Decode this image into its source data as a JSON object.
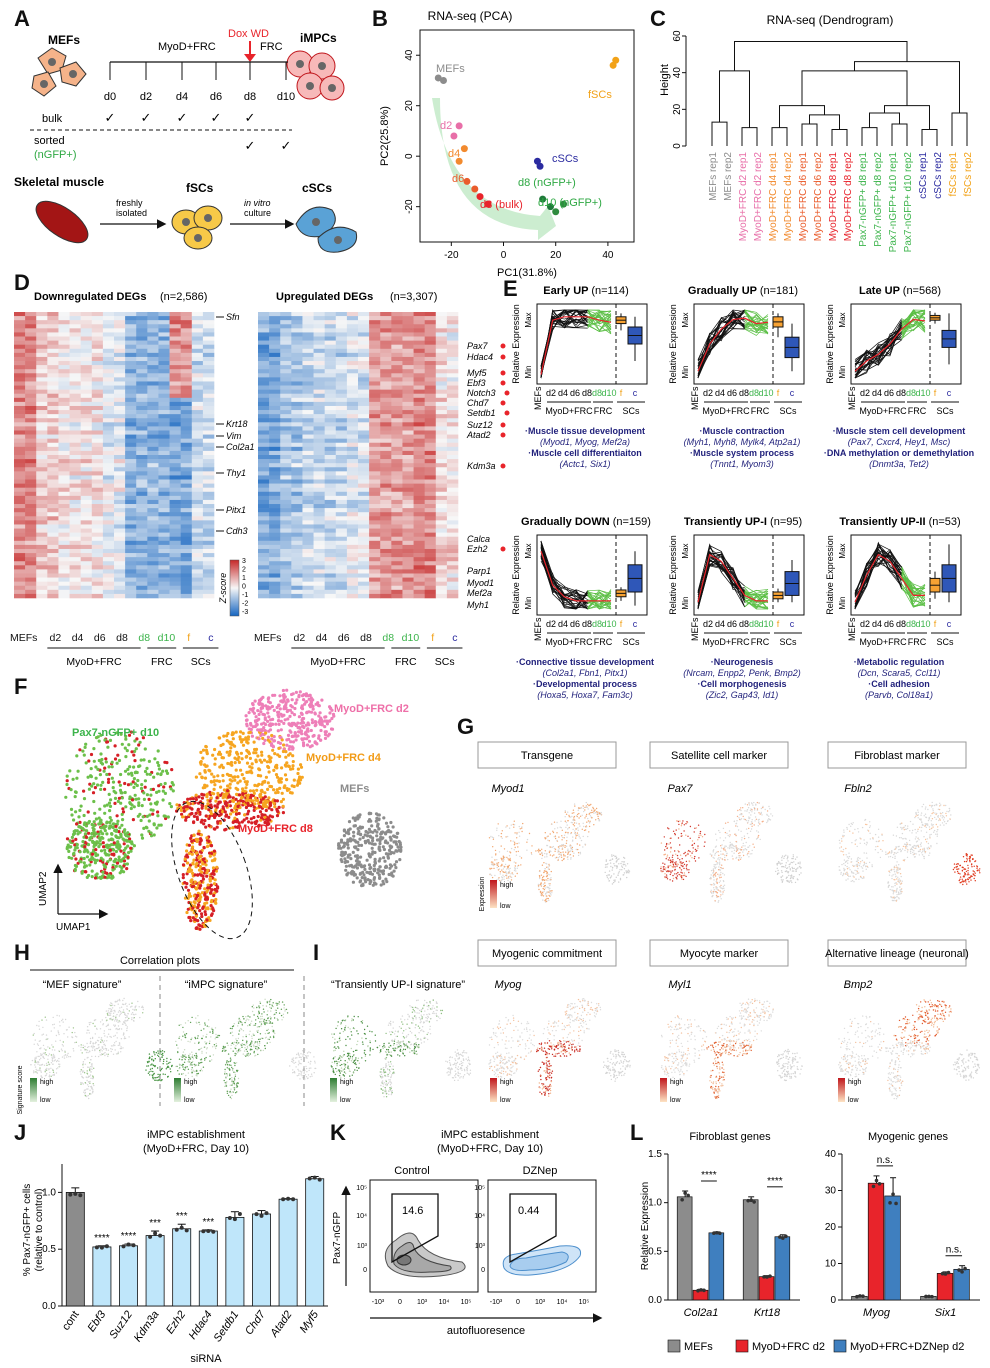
{
  "panels": {
    "A": {
      "letter": "A",
      "mefs": "MEFs",
      "impcs": "iMPCs",
      "myod_frc": "MyoD+FRC",
      "dox_wd": "Dox WD",
      "frc": "FRC",
      "days": [
        "d0",
        "d2",
        "d4",
        "d6",
        "d8",
        "d10"
      ],
      "bulk": "bulk",
      "sorted": "sorted",
      "ngfp": "(nGFP+)",
      "check": "✓",
      "skeletal_muscle": "Skeletal muscle",
      "freshly": "freshly",
      "isolated": "isolated",
      "fscs": "fSCs",
      "in_vitro": "in vitro",
      "culture": "culture",
      "cscs": "cSCs"
    },
    "B": {
      "letter": "B",
      "title": "RNA-seq (PCA)",
      "xlabel": "PC1(31.8%)",
      "ylabel": "PC2(25.8%)",
      "labels": {
        "mefs": "MEFs",
        "d2": "d2",
        "d4": "d4",
        "d6": "d6",
        "d8bulk": "d8 (bulk)",
        "d8ngfp": "d8 (nGFP+)",
        "d10": "d10 (nGFP+)",
        "cscs": "cSCs",
        "fscs": "fSCs"
      }
    },
    "C": {
      "letter": "C",
      "title": "RNA-seq (Dendrogram)",
      "ylabel": "Height",
      "leaves": [
        "MEFs rep1",
        "MEFs rep2",
        "MyoD+FRC d2 rep1",
        "MyoD+FRC d2 rep2",
        "MyoD+FRC d4 rep1",
        "MyoD+FRC d4 rep2",
        "MyoD+FRC d6 rep1",
        "MyoD+FRC d6 rep2",
        "MyoD+FRC d8 rep1",
        "MyoD+FRC d8 rep2",
        "Pax7-nGFP+ d8 rep1",
        "Pax7-nGFP+ d8 rep2",
        "Pax7-nGFP+ d10 rep1",
        "Pax7-nGFP+ d10 rep2",
        "cSCs rep1",
        "cSCs rep2",
        "fSCs rep1",
        "fSCs rep2"
      ]
    },
    "D": {
      "letter": "D",
      "down_title": "Downregulated DEGs",
      "down_n": "(n=2,586)",
      "up_title": "Upregulated DEGs",
      "up_n": "(n=3,307)",
      "down_genes": [
        "Sfn",
        "Krt18",
        "Vim",
        "Col2a1",
        "Thy1",
        "Pitx1",
        "Cdh3"
      ],
      "up_genes": [
        "Pax7",
        "Hdac4",
        "Myf5",
        "Ebf3",
        "Notch3",
        "Chd7",
        "Setdb1",
        "Suz12",
        "Atad2",
        "Kdm3a",
        "Calca",
        "Ezh2",
        "Parp1",
        "Myod1",
        "Mef2a",
        "Myh1"
      ],
      "zscore": "Z-score",
      "zticks": [
        "3",
        "2",
        "1",
        "0",
        "-1",
        "-2",
        "-3"
      ],
      "cols": [
        "MEFs",
        "d2",
        "d4",
        "d6",
        "d8",
        "d8",
        "d10",
        "f",
        "c"
      ],
      "groups": [
        "MyoD+FRC",
        "FRC",
        "SCs"
      ]
    },
    "E": {
      "letter": "E",
      "ylabel": "Relative Expression",
      "max": "Max",
      "min": "Min",
      "boxlabels": [
        "f",
        "c"
      ],
      "xgroups": [
        "MyoD+FRC",
        "FRC",
        "SCs"
      ],
      "clusters": [
        {
          "title": "Early UP",
          "n": "(n=114)",
          "terms": [
            [
              "·Muscle tissue development",
              "(Myod1, Myog, Mef2a)"
            ],
            [
              "·Muscle cell differentiaiton",
              "(Actc1, Six1)"
            ]
          ]
        },
        {
          "title": "Gradually UP",
          "n": "(n=181)",
          "terms": [
            [
              "·Muscle contraction",
              "(Myh1, Myh8, Mylk4, Atp2a1)"
            ],
            [
              "·Muscle system process",
              "(Tnnt1, Myom3)"
            ]
          ]
        },
        {
          "title": "Late UP",
          "n": "(n=568)",
          "terms": [
            [
              "·Muscle stem cell development",
              "(Pax7, Cxcr4, Hey1, Msc)"
            ],
            [
              "·DNA methylation or demethylation",
              "(Dnmt3a, Tet2)"
            ]
          ]
        },
        {
          "title": "Gradually DOWN",
          "n": "(n=159)",
          "terms": [
            [
              "·Connective tissue development",
              "(Col2a1, Fbn1, Pitx1)"
            ],
            [
              "·Developmental process",
              "(Hoxa5, Hoxa7, Fam3c)"
            ]
          ]
        },
        {
          "title": "Transiently UP-I",
          "n": "(n=95)",
          "terms": [
            [
              "·Neurogenesis",
              "(Nrcam, Enpp2, Penk, Bmp2)"
            ],
            [
              "·Cell morphogenesis",
              "(Zic2, Gap43, Id1)"
            ]
          ]
        },
        {
          "title": "Transiently UP-II",
          "n": "(n=53)",
          "terms": [
            [
              "·Metabolic regulation",
              "(Dcn, Scara5, Ccl11)"
            ],
            [
              "·Cell adhesion",
              "(Parvb, Col18a1)"
            ]
          ]
        }
      ]
    },
    "F": {
      "letter": "F",
      "d2": "MyoD+FRC d2",
      "d4": "MyoD+FRC d4",
      "d8": "MyoD+FRC d8",
      "d10": "Pax7-nGFP+ d10",
      "mefs": "MEFs",
      "umap1": "UMAP1",
      "umap2": "UMAP2"
    },
    "G": {
      "letter": "G",
      "boxes": [
        "Transgene",
        "Satellite cell marker",
        "Fibroblast marker"
      ],
      "genes": [
        "Myod1",
        "Pax7",
        "Fbln2"
      ],
      "expression": "Expression",
      "high": "high",
      "low": "low"
    },
    "H": {
      "letter": "H",
      "title": "Correlation plots",
      "mef": "“MEF signature”",
      "impc": "“iMPC signature”",
      "score": "Signature score",
      "high": "high",
      "low": "low"
    },
    "I": {
      "letter": "I",
      "boxes": [
        "Myogenic commitment",
        "Myocyte marker",
        "Alternative lineage (neuronal)"
      ],
      "sig": "“Transiently UP-I signature”",
      "genes": [
        "Myog",
        "Myl1",
        "Bmp2"
      ],
      "high": "high",
      "low": "low"
    },
    "J": {
      "letter": "J",
      "title1": "iMPC establishment",
      "title2": "(MyoD+FRC, Day 10)",
      "ylabel1": "% Pax7-nGFP+ cells",
      "ylabel2": "(relative to control)",
      "xlabel": "siRNA",
      "yticks": [
        "0.0",
        "0.5",
        "1.0"
      ]
    },
    "K": {
      "letter": "K",
      "title1": "iMPC establishment",
      "title2": "(MyoD+FRC, Day 10)",
      "control": "Control",
      "dzneP": "DZNep",
      "gate_control": "14.6",
      "gate_dznep": "0.44",
      "ylabel": "Pax7-nGFP",
      "xlabel": "autofluoresence"
    },
    "L": {
      "letter": "L",
      "fib_title": "Fibroblast genes",
      "myo_title": "Myogenic genes",
      "ylabel": "Relative Expression",
      "fib_yticks": [
        "0.0",
        "0.5",
        "1.0",
        "1.5"
      ],
      "myo_yticks": [
        "0",
        "10",
        "20",
        "30",
        "40"
      ],
      "sig1": "****",
      "sig2": "****",
      "ns1": "n.s.",
      "ns2": "n.s.",
      "legend": [
        "MEFs",
        "MyoD+FRC d2",
        "MyoD+FRC+DZNep d2"
      ],
      "colors": [
        "#8c8c8c",
        "#e8242b",
        "#3f7fbf"
      ]
    }
  },
  "chart_data": [
    {
      "type": "bar",
      "panel": "J",
      "title": "iMPC establishment (MyoD+FRC, Day 10)",
      "xlabel": "siRNA",
      "ylabel": "% Pax7-nGFP+ cells (relative to control)",
      "categories": [
        "cont",
        "Ebf3",
        "Suz12",
        "Kdm3a",
        "Ezh2",
        "Hdac4",
        "Setdb1",
        "Chd7",
        "Atad2",
        "Myf5"
      ],
      "values": [
        1.0,
        0.52,
        0.53,
        0.62,
        0.68,
        0.66,
        0.78,
        0.81,
        0.94,
        1.12
      ],
      "errors": [
        0.04,
        0.01,
        0.015,
        0.04,
        0.04,
        0.01,
        0.05,
        0.03,
        0.005,
        0.02
      ],
      "significance": [
        "",
        "****",
        "****",
        "***",
        "***",
        "***",
        "",
        "",
        "",
        ""
      ],
      "colors": [
        "#8c8c8c",
        "#bfe6fa",
        "#bfe6fa",
        "#bfe6fa",
        "#bfe6fa",
        "#bfe6fa",
        "#bfe6fa",
        "#bfe6fa",
        "#bfe6fa",
        "#bfe6fa"
      ],
      "ylim": [
        0,
        1.25
      ]
    },
    {
      "type": "bar",
      "panel": "L-fibroblast",
      "title": "Fibroblast genes",
      "ylabel": "Relative Expression",
      "categories": [
        "Col2a1",
        "Krt18"
      ],
      "series": [
        {
          "name": "MEFs",
          "values": [
            1.06,
            1.03
          ],
          "errors": [
            0.06,
            0.03
          ]
        },
        {
          "name": "MyoD+FRC d2",
          "values": [
            0.1,
            0.24
          ],
          "errors": [
            0.01,
            0.01
          ]
        },
        {
          "name": "MyoD+FRC+DZNep d2",
          "values": [
            0.69,
            0.65
          ],
          "errors": [
            0.01,
            0.02
          ]
        }
      ],
      "ylim": [
        0,
        1.5
      ]
    },
    {
      "type": "bar",
      "panel": "L-myogenic",
      "title": "Myogenic genes",
      "ylabel": "Relative Expression",
      "categories": [
        "Myog",
        "Six1"
      ],
      "series": [
        {
          "name": "MEFs",
          "values": [
            1,
            1
          ],
          "errors": [
            0.2,
            0.1
          ]
        },
        {
          "name": "MyoD+FRC d2",
          "values": [
            32,
            7.3
          ],
          "errors": [
            2,
            0.4
          ]
        },
        {
          "name": "MyoD+FRC+DZNep d2",
          "values": [
            28.5,
            8.4
          ],
          "errors": [
            5,
            1
          ]
        }
      ],
      "ylim": [
        0,
        40
      ]
    }
  ]
}
